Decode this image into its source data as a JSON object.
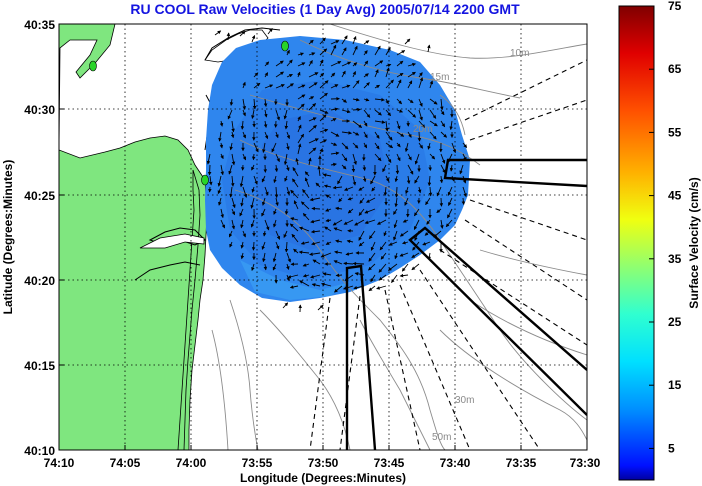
{
  "title": "RU COOL Raw Velocities (1 Day Avg) 2005/07/14 2200 GMT",
  "xlabel": "Longitude (Degrees:Minutes)",
  "ylabel": "Latitude (Degrees:Minutes)",
  "colorbar": {
    "label": "Surface Velocity (cm/s)",
    "min": 0,
    "max": 75,
    "ticks": [
      "75",
      "65",
      "55",
      "45",
      "35",
      "25",
      "15",
      "5"
    ],
    "tick_values": [
      75,
      65,
      55,
      45,
      35,
      25,
      15,
      5
    ]
  },
  "map": {
    "x_ticks": [
      "74:10",
      "74:05",
      "74:00",
      "73:55",
      "73:50",
      "73:45",
      "73:40",
      "73:35",
      "73:30"
    ],
    "y_ticks": [
      "40:35",
      "40:30",
      "40:25",
      "40:20",
      "40:15",
      "40:10"
    ],
    "contour_labels": [
      "10m",
      "15m",
      "20m",
      "30m",
      "50m"
    ],
    "land_color": "#7fe67f",
    "coverage_color": "#2f86ee",
    "grid": true
  }
}
